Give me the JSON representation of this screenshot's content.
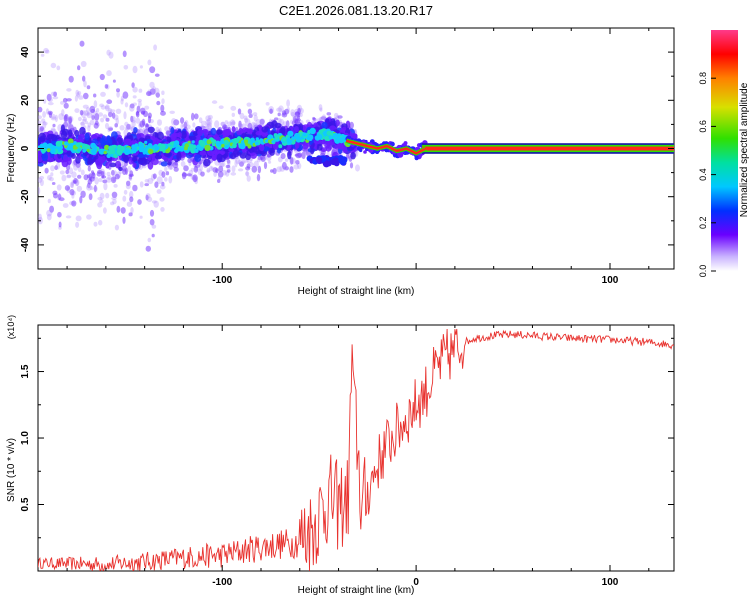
{
  "title": "C2E1.2026.081.13.20.R17",
  "chart_data": [
    {
      "type": "heatmap",
      "title": "C2E1.2026.081.13.20.R17",
      "xlabel": "Height of straight line (km)",
      "ylabel": "Frequency (Hz)",
      "xlim": [
        -195,
        133
      ],
      "ylim": [
        -50,
        50
      ],
      "xticks": [
        -100,
        0,
        100
      ],
      "xtick_labels": [
        "-100",
        "",
        "100"
      ],
      "yticks": [
        -40,
        -20,
        0,
        20,
        40
      ],
      "ytick_labels": [
        "-40",
        "-20",
        "0",
        "20",
        "40"
      ],
      "colorbar": {
        "label": "Normalized spectral amplitude",
        "range": [
          0,
          1
        ],
        "ticks": [
          0.0,
          0.2,
          0.4,
          0.6,
          0.8
        ],
        "tick_labels": [
          "0.0",
          "0.2",
          "0.4",
          "0.6",
          "0.8"
        ]
      },
      "ridge": {
        "x": [
          -195,
          -180,
          -160,
          -140,
          -120,
          -100,
          -80,
          -60,
          -45,
          -35,
          -30,
          -25,
          -20,
          -15,
          -10,
          -5,
          0,
          5,
          10,
          20,
          40,
          60,
          80,
          100,
          120,
          133
        ],
        "frequency": [
          0,
          1,
          -1,
          0,
          1,
          2,
          3,
          5,
          6,
          3,
          2,
          1,
          0,
          1,
          -1,
          0,
          -2,
          0,
          0,
          0,
          0,
          0,
          0,
          0,
          0,
          0
        ]
      }
    },
    {
      "type": "line",
      "xlabel": "Height of straight line (km)",
      "ylabel": "SNR (10 * v/v)",
      "y_multiplier": "(x10⁴)",
      "xlim": [
        -195,
        133
      ],
      "ylim": [
        0,
        1.85
      ],
      "xticks": [
        -100,
        0,
        100
      ],
      "xtick_labels": [
        "-100",
        "0",
        "100"
      ],
      "yticks": [
        0.5,
        1.0,
        1.5
      ],
      "ytick_labels": [
        "0.5",
        "1.0",
        "1.5"
      ],
      "series": [
        {
          "name": "SNR",
          "color": "#e8322e",
          "x": [
            -195,
            -160,
            -140,
            -120,
            -100,
            -80,
            -60,
            -55,
            -50,
            -45,
            -40,
            -35,
            -33,
            -30,
            -28,
            -25,
            -20,
            -15,
            -10,
            -5,
            0,
            5,
            10,
            15,
            20,
            25,
            30,
            40,
            50,
            60,
            80,
            100,
            120,
            133
          ],
          "y": [
            0.06,
            0.05,
            0.07,
            0.1,
            0.12,
            0.18,
            0.22,
            0.28,
            0.42,
            0.55,
            0.48,
            0.55,
            1.5,
            0.9,
            0.45,
            0.6,
            0.8,
            0.95,
            1.05,
            1.15,
            1.25,
            1.35,
            1.5,
            1.6,
            1.66,
            1.72,
            1.75,
            1.77,
            1.78,
            1.77,
            1.75,
            1.74,
            1.72,
            1.7
          ]
        }
      ]
    }
  ]
}
